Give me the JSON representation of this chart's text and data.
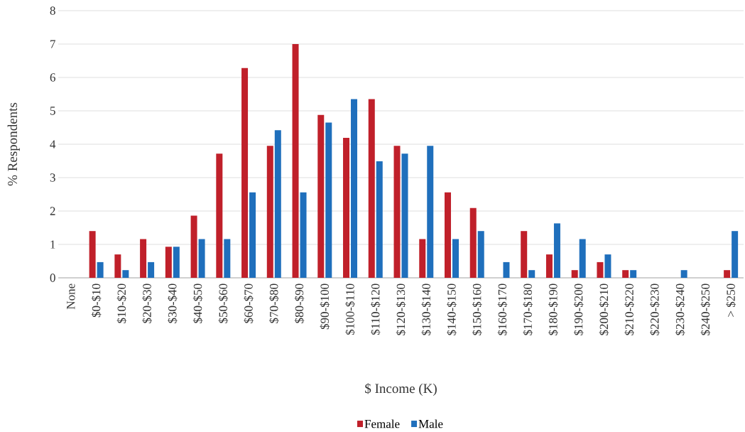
{
  "chart_data": {
    "type": "bar",
    "xlabel": "$ Income (K)",
    "ylabel": "% Respondents",
    "categories": [
      "None",
      "$0-$10",
      "$10-$20",
      "$20-$30",
      "$30-$40",
      "$40-$50",
      "$50-$60",
      "$60-$70",
      "$70-$80",
      "$80-$90",
      "$90-$100",
      "$100-$110",
      "$110-$120",
      "$120-$130",
      "$130-$140",
      "$140-$150",
      "$150-$160",
      "$160-$170",
      "$170-$180",
      "$180-$190",
      "$190-$200",
      "$200-$210",
      "$210-$220",
      "$220-$230",
      "$230-$240",
      "$240-$250",
      "> $250"
    ],
    "series": [
      {
        "name": "Female",
        "color": "#c0202a",
        "values": [
          0,
          1.4,
          0.7,
          1.16,
          0.93,
          1.86,
          3.72,
          6.28,
          3.95,
          7.0,
          4.88,
          4.19,
          5.35,
          3.95,
          1.16,
          2.56,
          2.09,
          0,
          1.4,
          0.7,
          0.23,
          0.47,
          0.23,
          0,
          0,
          0,
          0.23
        ]
      },
      {
        "name": "Male",
        "color": "#1f6fbc",
        "values": [
          0,
          0.47,
          0.23,
          0.47,
          0.93,
          1.16,
          1.16,
          2.56,
          4.42,
          2.56,
          4.65,
          5.35,
          3.49,
          3.72,
          3.95,
          1.16,
          1.4,
          0.47,
          0.23,
          1.63,
          1.16,
          0.7,
          0.23,
          0,
          0.23,
          0,
          1.4
        ]
      }
    ],
    "ylim": [
      0,
      8
    ],
    "yticks": [
      0,
      1,
      2,
      3,
      4,
      5,
      6,
      7,
      8
    ],
    "grid": "y",
    "legend": "bottom"
  }
}
